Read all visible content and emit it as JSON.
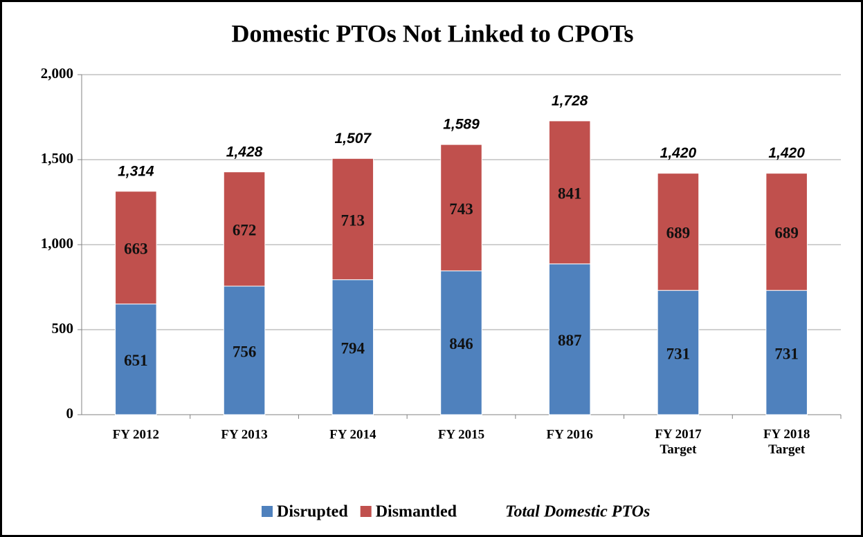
{
  "chart_data": {
    "type": "stacked_bar",
    "title": "Domestic PTOs Not Linked to CPOTs",
    "categories": [
      "FY 2012",
      "FY 2013",
      "FY 2014",
      "FY 2015",
      "FY 2016",
      "FY 2017\nTarget",
      "FY 2018\nTarget"
    ],
    "series": [
      {
        "name": "Disrupted",
        "color": "#4f81bd",
        "values": [
          651,
          756,
          794,
          846,
          887,
          731,
          731
        ]
      },
      {
        "name": "Dismantled",
        "color": "#c0504d",
        "values": [
          663,
          672,
          713,
          743,
          841,
          689,
          689
        ]
      }
    ],
    "totals": {
      "name": "Total Domestic PTOs",
      "values": [
        1314,
        1428,
        1507,
        1589,
        1728,
        1420,
        1420
      ],
      "value_labels": [
        "1,314",
        "1,428",
        "1,507",
        "1,589",
        "1,728",
        "1,420",
        "1,420"
      ]
    },
    "ylim": [
      0,
      2000
    ],
    "yticks": [
      0,
      500,
      {
        "value": 1000,
        "label": "1,000"
      },
      {
        "value": 1500,
        "label": "1,500"
      },
      {
        "value": 2000,
        "label": "2,000"
      }
    ],
    "grid": true,
    "legend": "bottom"
  }
}
